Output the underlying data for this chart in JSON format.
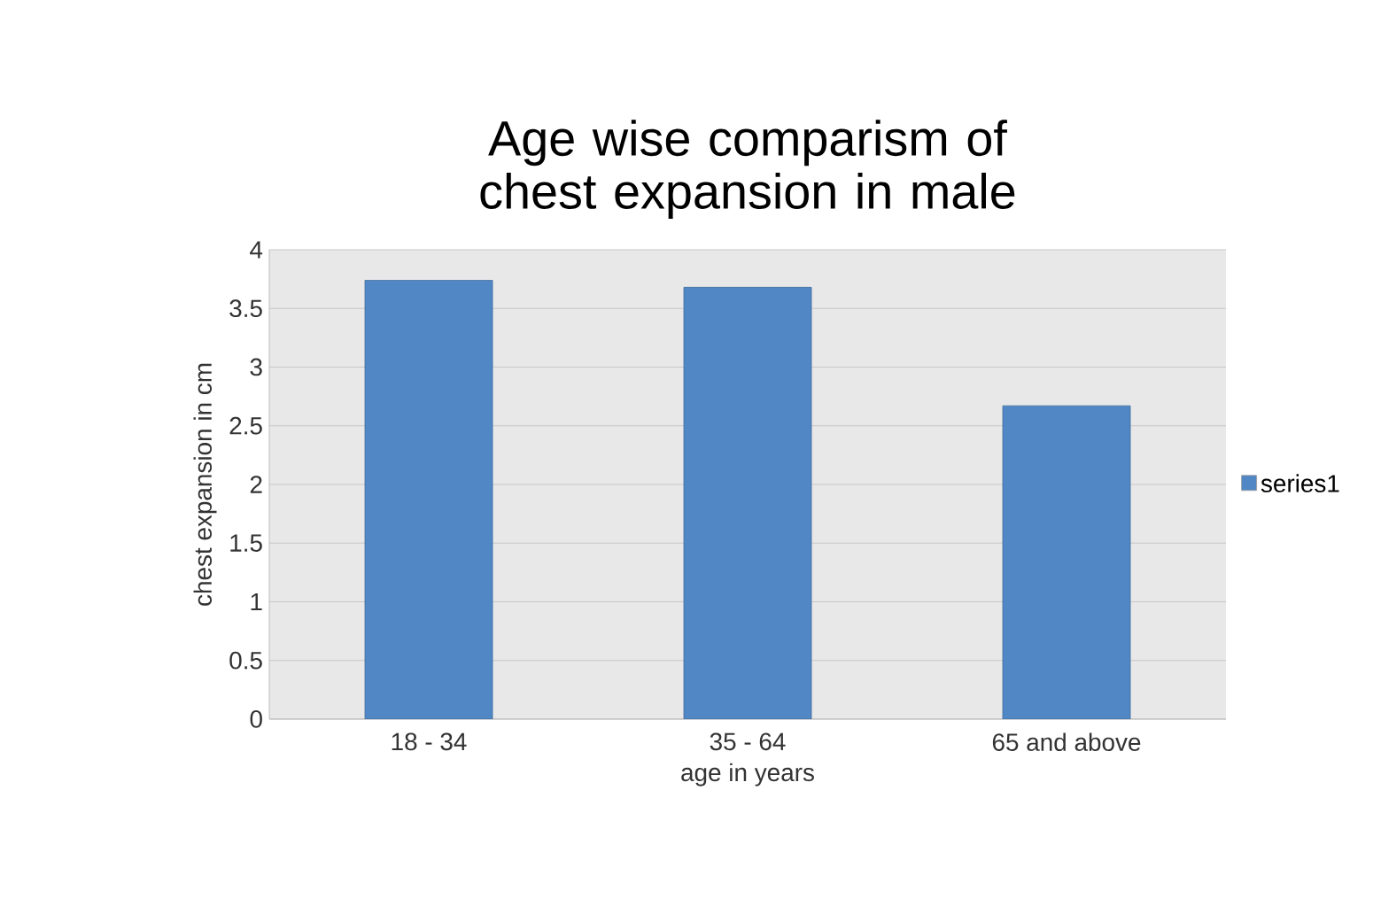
{
  "chart_data": {
    "type": "bar",
    "title": "Age wise comparism of chest expansion in male",
    "xlabel": "age in years",
    "ylabel": "chest expansion in cm",
    "categories": [
      "18 - 34",
      "35 - 64",
      "65 and above"
    ],
    "series": [
      {
        "name": "series1",
        "color": "#5087c4",
        "values": [
          3.74,
          3.68,
          2.67
        ]
      }
    ],
    "ylim": [
      0,
      4
    ],
    "yticks": [
      0,
      0.5,
      1,
      1.5,
      2,
      2.5,
      3,
      3.5,
      4
    ],
    "grid": "y",
    "legend": "right"
  }
}
